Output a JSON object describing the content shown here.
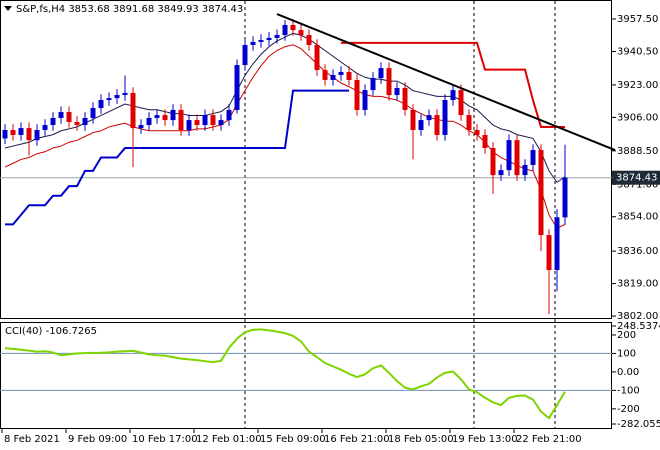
{
  "chart_data": {
    "type": "candlestick",
    "title": "S&P,fs,H4  3853.68 3891.68 3849.93 3874.43",
    "open": [
      3895,
      3899.4,
      3896.8,
      3900.4,
      3894.1,
      3899.4,
      3902.0,
      3905.7,
      3908.8,
      3903.6,
      3902.0,
      3905.7,
      3910.9,
      3915.1,
      3916.1,
      3917.7,
      3918.8,
      3900.4,
      3902.0,
      3905.7,
      3907.2,
      3904.6,
      3909.9,
      3899.4,
      3904.6,
      3902.0,
      3907.2,
      3902.0,
      3904.6,
      3909.9,
      3933.4,
      3943.9,
      3945.5,
      3946.5,
      3947.6,
      3949.1,
      3954.4,
      3951.7,
      3949.1,
      3943.9,
      3930.8,
      3925.6,
      3928.2,
      3929.8,
      3925.6,
      3909.9,
      3920.3,
      3926.6,
      3931.8,
      3917.7,
      3921.4,
      3909.9,
      3899.4,
      3904.6,
      3907.2,
      3896.8,
      3915.1,
      3920.3,
      3907.2,
      3899.4,
      3896.8,
      3890.0,
      3875.8,
      3878.4,
      3894.1,
      3875.8,
      3881.1,
      3888.9,
      3844.4,
      3826.1,
      3853.68
    ],
    "high": [
      3902.4,
      3902.4,
      3903.4,
      3903.4,
      3902.4,
      3905,
      3908.7,
      3911.8,
      3911.8,
      3906.6,
      3908.7,
      3913.9,
      3918.1,
      3919.1,
      3920.7,
      3928,
      3921.8,
      3905,
      3908.7,
      3910.2,
      3910.2,
      3912.9,
      3912.9,
      3907.6,
      3907.6,
      3910.2,
      3910.2,
      3907.6,
      3912.9,
      3936.4,
      3946.9,
      3948.5,
      3949.5,
      3950.6,
      3952.1,
      3957,
      3957.4,
      3954.7,
      3952.1,
      3946.9,
      3933.8,
      3931.2,
      3932.8,
      3932.8,
      3928.6,
      3923.3,
      3929.6,
      3934.8,
      3934.8,
      3924.4,
      3924.4,
      3912.9,
      3907.6,
      3910.2,
      3910.2,
      3918.1,
      3923.3,
      3923.3,
      3910.2,
      3902.4,
      3899.8,
      3893,
      3881.4,
      3897.1,
      3897.1,
      3884.1,
      3891.9,
      3891.9,
      3847.4,
      3858,
      3891.68
    ],
    "low": [
      3892,
      3893.8,
      3893.8,
      3886,
      3891.1,
      3896.4,
      3899,
      3902.7,
      3900.6,
      3899,
      3899,
      3902.7,
      3907.9,
      3912.1,
      3913.1,
      3914.7,
      3880,
      3897.4,
      3899,
      3902.7,
      3901.6,
      3901.6,
      3896.4,
      3896.4,
      3899,
      3899,
      3899,
      3899,
      3901.6,
      3908,
      3930.4,
      3940.9,
      3942.5,
      3943.5,
      3944.6,
      3946.1,
      3948.7,
      3946.1,
      3940.9,
      3927.8,
      3922.6,
      3922.6,
      3925.2,
      3922.6,
      3906.9,
      3906.9,
      3917.3,
      3923.6,
      3914.7,
      3914.7,
      3906.9,
      3884,
      3896.4,
      3901.6,
      3893.8,
      3893.8,
      3912.1,
      3904.2,
      3896.4,
      3893.8,
      3887,
      3866,
      3872.8,
      3875.4,
      3872.8,
      3872.8,
      3878.1,
      3836,
      3803,
      3815,
      3849.93
    ],
    "close": [
      3899.4,
      3896.8,
      3900.4,
      3894.1,
      3899.4,
      3902.0,
      3905.7,
      3908.8,
      3903.6,
      3902.0,
      3905.7,
      3910.9,
      3915.1,
      3916.1,
      3917.7,
      3918.8,
      3900.4,
      3902.0,
      3905.7,
      3907.2,
      3904.6,
      3909.9,
      3899.4,
      3904.6,
      3902.0,
      3907.2,
      3902.0,
      3904.6,
      3909.9,
      3933.4,
      3943.9,
      3945.5,
      3946.5,
      3947.6,
      3949.1,
      3954.4,
      3951.7,
      3949.1,
      3943.9,
      3930.8,
      3925.6,
      3928.2,
      3929.8,
      3925.6,
      3909.9,
      3920.3,
      3926.6,
      3931.8,
      3917.7,
      3921.4,
      3909.9,
      3899.4,
      3904.6,
      3907.2,
      3896.8,
      3915.1,
      3920.3,
      3907.2,
      3899.4,
      3896.8,
      3890.0,
      3875.8,
      3878.4,
      3894.1,
      3875.8,
      3881.1,
      3888.9,
      3844.4,
      3826.1,
      3853.68,
      3874.43
    ],
    "up_color": "#0000cd",
    "down_color": "#e00000",
    "ylim": [
      3801,
      3966.4
    ],
    "yticks": [
      {
        "value": 3957.5,
        "label": "3957.50"
      },
      {
        "value": 3940.5,
        "label": "3940.50"
      },
      {
        "value": 3923,
        "label": "3923.00"
      },
      {
        "value": 3906,
        "label": "3906.00"
      },
      {
        "value": 3888.5,
        "label": "3888.50"
      },
      {
        "value": 3871,
        "label": "3871.00"
      },
      {
        "value": 3854,
        "label": "3854.00"
      },
      {
        "value": 3836,
        "label": "3836.00"
      },
      {
        "value": 3819,
        "label": "3819.00"
      },
      {
        "value": 3802,
        "label": "3802.00"
      }
    ],
    "xticks": [
      {
        "value": 0,
        "label": "8 Feb 2021"
      },
      {
        "value": 8,
        "label": "9 Feb 09:00"
      },
      {
        "value": 16,
        "label": "10 Feb 17:00"
      },
      {
        "value": 24,
        "label": "12 Feb 01:00"
      },
      {
        "value": 32,
        "label": "15 Feb 09:00"
      },
      {
        "value": 40,
        "label": "16 Feb 21:00"
      },
      {
        "value": 48,
        "label": "18 Feb 05:00"
      },
      {
        "value": 56,
        "label": "19 Feb 13:00"
      },
      {
        "value": 64,
        "label": "22 Feb 21:00"
      }
    ],
    "last_price": 3874.43,
    "overlays": [
      {
        "color": "#1a1a4a",
        "width": 1,
        "values": [
          3890,
          3891,
          3892,
          3893,
          3895,
          3896,
          3897,
          3899,
          3900,
          3901,
          3903,
          3905,
          3907,
          3909,
          3911,
          3913,
          3912,
          3911,
          3910,
          3910,
          3909,
          3908,
          3908,
          3907,
          3907,
          3907,
          3908,
          3909,
          3912,
          3920,
          3928,
          3934,
          3939,
          3943,
          3946,
          3948,
          3950,
          3949,
          3947,
          3944,
          3941,
          3938,
          3935,
          3932,
          3929,
          3927,
          3926,
          3926,
          3925,
          3925,
          3923,
          3920,
          3919,
          3918,
          3917,
          3917,
          3917,
          3915,
          3912,
          3910,
          3906,
          3902,
          3900,
          3899,
          3897,
          3896,
          3895,
          3888,
          3878,
          3872,
          3875
        ]
      },
      {
        "color": "#cc0000",
        "width": 1,
        "values": [
          3880,
          3882,
          3884,
          3885,
          3887,
          3888,
          3890,
          3891,
          3893,
          3894,
          3896,
          3898,
          3899,
          3901,
          3902,
          3903,
          3901,
          3900,
          3899,
          3899,
          3899,
          3899,
          3899,
          3899,
          3900,
          3900,
          3901,
          3902,
          3905,
          3913,
          3920,
          3927,
          3933,
          3938,
          3941,
          3943,
          3944,
          3942,
          3938,
          3934,
          3930,
          3927,
          3924,
          3922,
          3920,
          3918,
          3917,
          3917,
          3916,
          3915,
          3913,
          3910,
          3908,
          3906,
          3905,
          3904,
          3904,
          3902,
          3899,
          3897,
          3893,
          3888,
          3885,
          3883,
          3881,
          3879,
          3878,
          3868,
          3855,
          3848,
          3850
        ]
      },
      {
        "color": "#0000cd",
        "width": 2,
        "values": [
          3850,
          3850,
          3855,
          3860,
          3860,
          3860,
          3865,
          3865,
          3870,
          3870,
          3878,
          3878,
          3885,
          3885,
          3885,
          3890,
          3890,
          3890,
          3890,
          3890,
          3890,
          3890,
          3890,
          3890,
          3890,
          3890,
          3890,
          3890,
          3890,
          3890,
          3890,
          3890,
          3890,
          3890,
          3890,
          3890,
          3920,
          3920,
          3920,
          3920,
          3920,
          3920,
          3920,
          3920,
          null,
          null,
          null,
          null,
          null,
          null,
          null,
          null,
          null,
          null,
          null,
          null,
          null,
          null,
          null,
          null,
          null,
          null,
          null,
          null,
          null,
          null,
          null,
          null,
          null,
          null,
          null
        ]
      },
      {
        "color": "#e00000",
        "width": 2,
        "values": [
          null,
          null,
          null,
          null,
          null,
          null,
          null,
          null,
          null,
          null,
          null,
          null,
          null,
          null,
          null,
          null,
          null,
          null,
          null,
          null,
          null,
          null,
          null,
          null,
          null,
          null,
          null,
          null,
          null,
          null,
          null,
          null,
          null,
          null,
          null,
          null,
          null,
          null,
          null,
          null,
          null,
          null,
          3945,
          3945,
          3945,
          3945,
          3945,
          3945,
          3945,
          3945,
          3945,
          3945,
          3945,
          3945,
          3945,
          3945,
          3945,
          3945,
          3945,
          3945,
          3931,
          3931,
          3931,
          3931,
          3931,
          3931,
          3915,
          3901,
          3901,
          3901,
          3901
        ]
      }
    ],
    "trendline": {
      "color": "#000000",
      "x": [
        34,
        76.25
      ],
      "y": [
        3960.1,
        3888.9
      ]
    },
    "indicator": {
      "title": "CCI(40) -106.7265",
      "color": "#7fd400",
      "values": [
        129,
        125,
        120,
        115,
        110,
        112,
        105,
        90,
        95,
        100,
        102,
        103,
        104,
        106,
        110,
        112,
        114,
        105,
        95,
        90,
        88,
        80,
        72,
        68,
        64,
        58,
        53,
        60,
        130,
        180,
        215,
        228,
        230,
        225,
        218,
        210,
        195,
        165,
        110,
        80,
        48,
        30,
        12,
        -10,
        -28,
        -13,
        20,
        35,
        -5,
        -50,
        -85,
        -95,
        -78,
        -65,
        -30,
        -5,
        2,
        -40,
        -95,
        -110,
        -140,
        -165,
        -180,
        -140,
        -130,
        -128,
        -150,
        -215,
        -250,
        -180,
        -106.7265
      ],
      "ylim": [
        -282.0558,
        248.5374
      ],
      "yticks": [
        248.5374,
        200,
        100,
        {
          "value": 0,
          "label": "0.00"
        },
        -100,
        -200,
        -282.0558
      ],
      "levels": [
        100,
        -100
      ],
      "level_color": "#6f8fb8"
    }
  }
}
